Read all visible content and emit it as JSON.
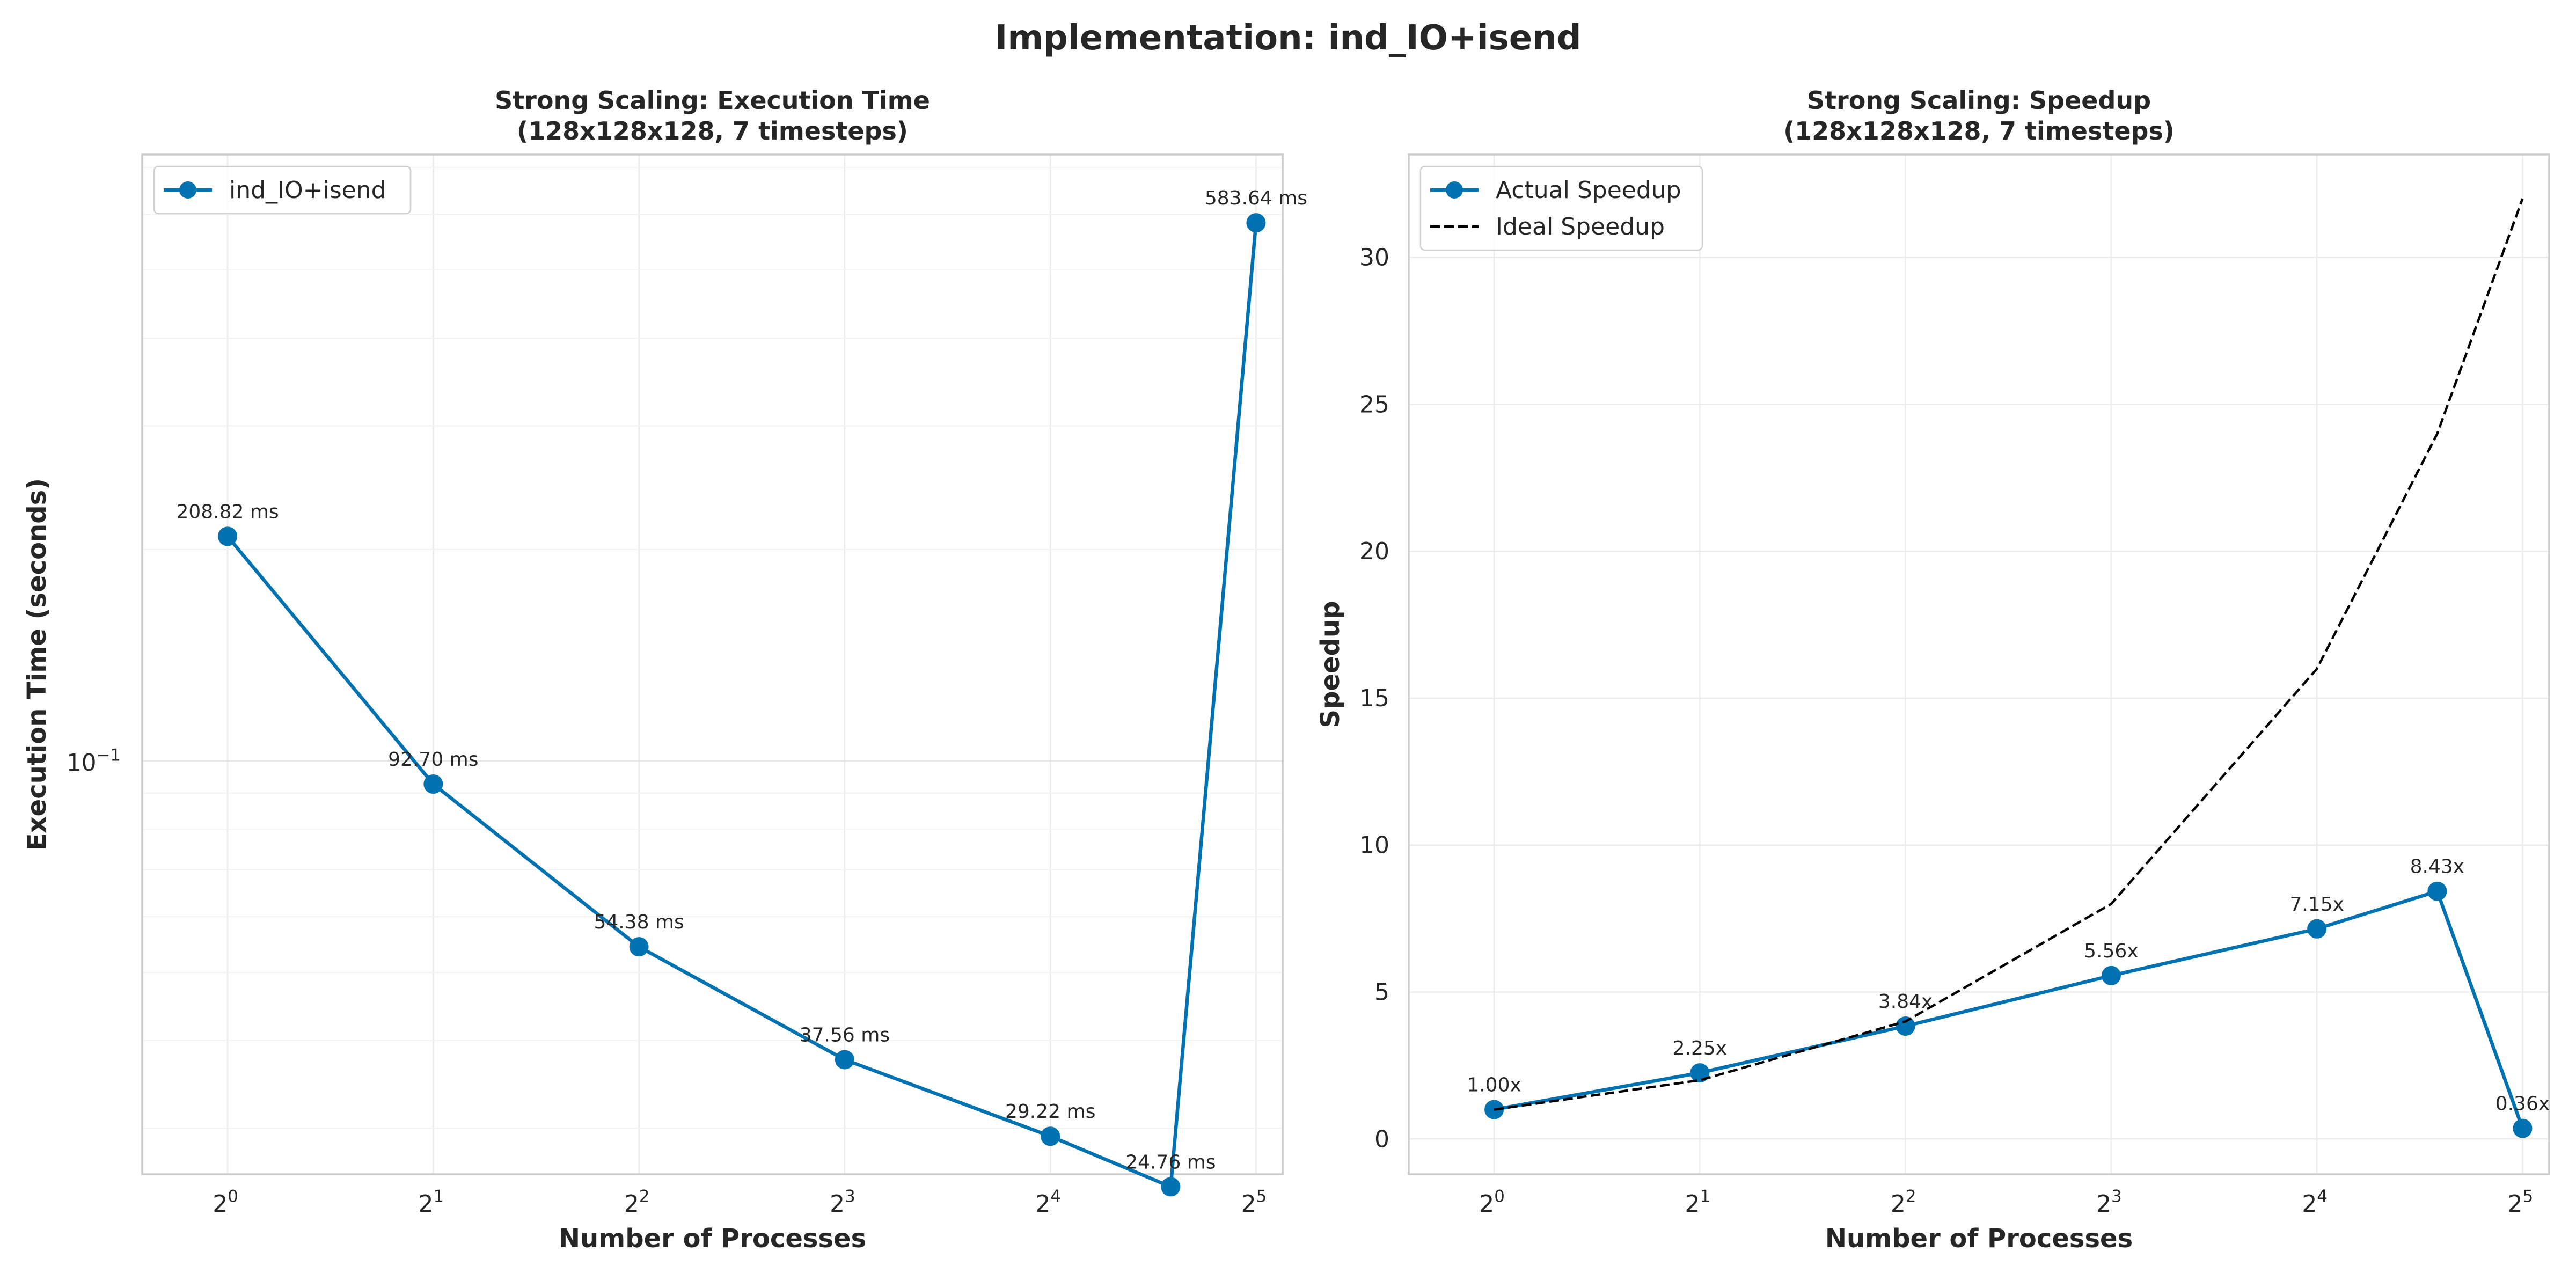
{
  "figure": {
    "suptitle": "Implementation: ind_IO+isend"
  },
  "chart_data": [
    {
      "type": "line",
      "title_line1": "Strong Scaling: Execution Time",
      "title_line2": "(128x128x128, 7 timesteps)",
      "xlabel": "Number of Processes",
      "ylabel": "Execution Time (seconds)",
      "x_scale": "log2",
      "y_scale": "log10",
      "xlim": [
        0.75,
        35
      ],
      "ylim": [
        0.0258,
        0.73
      ],
      "x_ticks": [
        {
          "value": 1,
          "base": "2",
          "exp": "0"
        },
        {
          "value": 2,
          "base": "2",
          "exp": "1"
        },
        {
          "value": 4,
          "base": "2",
          "exp": "2"
        },
        {
          "value": 8,
          "base": "2",
          "exp": "3"
        },
        {
          "value": 16,
          "base": "2",
          "exp": "4"
        },
        {
          "value": 32,
          "base": "2",
          "exp": "5"
        }
      ],
      "y_ticks": [
        {
          "value": 0.1,
          "base": "10",
          "exp": "−1"
        }
      ],
      "grid": true,
      "legend_position": "top-left",
      "series": [
        {
          "name": "ind_IO+isend",
          "color": "#0072B2",
          "marker": "circle",
          "x": [
            1,
            2,
            4,
            8,
            16,
            24,
            32
          ],
          "y": [
            0.20882,
            0.0927,
            0.05438,
            0.03756,
            0.02922,
            0.02476,
            0.58364
          ],
          "labels": [
            "208.82 ms",
            "92.70 ms",
            "54.38 ms",
            "37.56 ms",
            "29.22 ms",
            "24.76 ms",
            "583.64 ms"
          ]
        }
      ]
    },
    {
      "type": "line",
      "title_line1": "Strong Scaling: Speedup",
      "title_line2": "(128x128x128, 7 timesteps)",
      "xlabel": "Number of Processes",
      "ylabel": "Speedup",
      "x_scale": "log2",
      "y_scale": "linear",
      "xlim": [
        0.75,
        35
      ],
      "ylim": [
        -1.2,
        33.5
      ],
      "x_ticks": [
        {
          "value": 1,
          "base": "2",
          "exp": "0"
        },
        {
          "value": 2,
          "base": "2",
          "exp": "1"
        },
        {
          "value": 4,
          "base": "2",
          "exp": "2"
        },
        {
          "value": 8,
          "base": "2",
          "exp": "3"
        },
        {
          "value": 16,
          "base": "2",
          "exp": "4"
        },
        {
          "value": 32,
          "base": "2",
          "exp": "5"
        }
      ],
      "y_ticks": [
        {
          "value": 0,
          "label": "0"
        },
        {
          "value": 5,
          "label": "5"
        },
        {
          "value": 10,
          "label": "10"
        },
        {
          "value": 15,
          "label": "15"
        },
        {
          "value": 20,
          "label": "20"
        },
        {
          "value": 25,
          "label": "25"
        },
        {
          "value": 30,
          "label": "30"
        }
      ],
      "grid": true,
      "legend_position": "top-left",
      "series": [
        {
          "name": "Actual Speedup",
          "color": "#0072B2",
          "marker": "circle",
          "style": "solid",
          "x": [
            1,
            2,
            4,
            8,
            16,
            24,
            32
          ],
          "y": [
            1.0,
            2.25,
            3.84,
            5.56,
            7.15,
            8.43,
            0.36
          ],
          "labels": [
            "1.00x",
            "2.25x",
            "3.84x",
            "5.56x",
            "7.15x",
            "8.43x",
            "0.36x"
          ]
        },
        {
          "name": "Ideal Speedup",
          "color": "#000000",
          "marker": "none",
          "style": "dashed",
          "x": [
            1,
            2,
            4,
            8,
            16,
            24,
            32
          ],
          "y": [
            1,
            2,
            4,
            8,
            16,
            24,
            32
          ]
        }
      ]
    }
  ]
}
